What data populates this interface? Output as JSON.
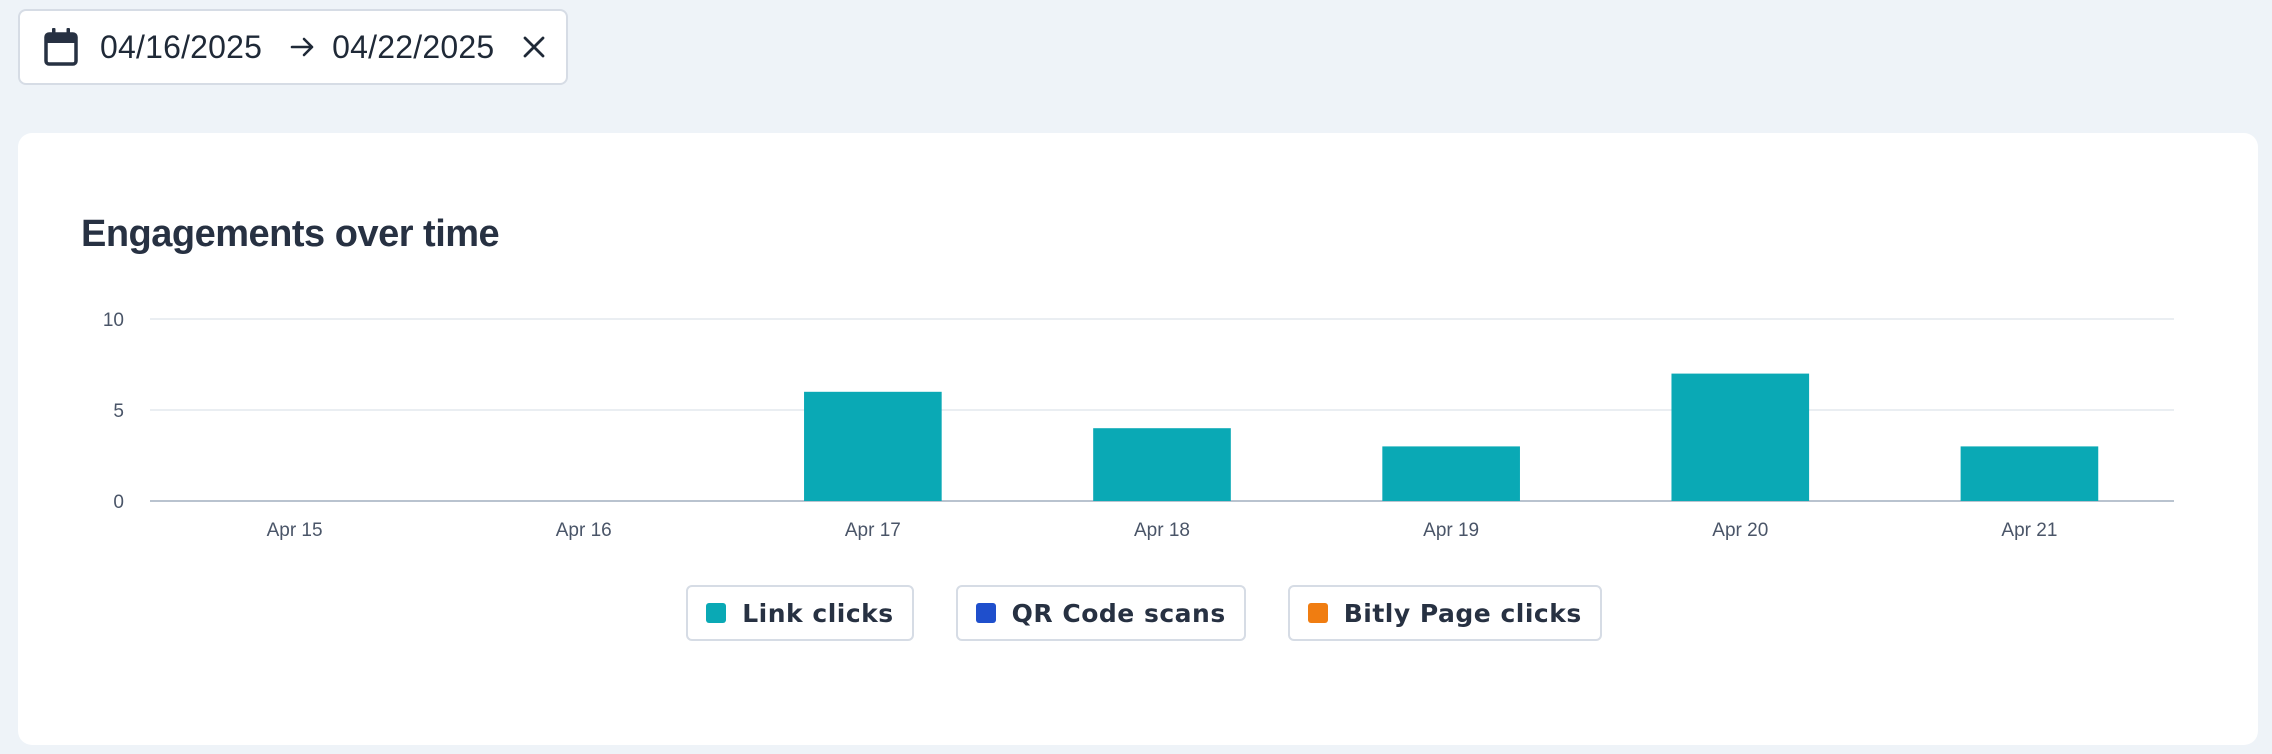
{
  "date_range": {
    "start": "04/16/2025",
    "end": "04/22/2025"
  },
  "icons": {
    "calendar": "calendar-icon",
    "arrow": "arrow-right-icon",
    "clear": "close-icon"
  },
  "colors": {
    "link_clicks": "#0aa9b5",
    "qr_code_scans": "#1f4fcc",
    "bitly_page_clicks": "#f07d11"
  },
  "chart_data": {
    "type": "bar",
    "title": "Engagements over time",
    "categories": [
      "Apr 15",
      "Apr 16",
      "Apr 17",
      "Apr 18",
      "Apr 19",
      "Apr 20",
      "Apr 21"
    ],
    "series": [
      {
        "name": "Link clicks",
        "values": [
          0,
          0,
          6,
          4,
          3,
          7,
          3
        ]
      },
      {
        "name": "QR Code scans",
        "values": [
          0,
          0,
          0,
          0,
          0,
          0,
          0
        ]
      },
      {
        "name": "Bitly Page clicks",
        "values": [
          0,
          0,
          0,
          0,
          0,
          0,
          0
        ]
      }
    ],
    "y_ticks": [
      0,
      5,
      10
    ],
    "ylim": [
      0,
      10
    ],
    "xlabel": "",
    "ylabel": "",
    "grid": true,
    "legend_position": "bottom-center"
  }
}
